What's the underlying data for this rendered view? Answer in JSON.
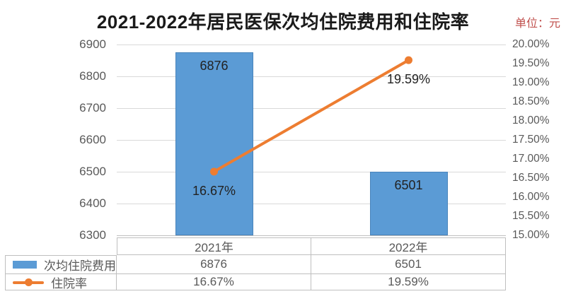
{
  "title": "2021-2022年居民医保次均住院费用和住院率",
  "unit_label": "单位：元",
  "colors": {
    "bar": "#5B9BD5",
    "line": "#ED7D31",
    "grid": "#D9D9D9",
    "axis_text": "#595959",
    "data_label": "#222222",
    "table_border": "#BFBFBF",
    "unit_text": "#C0504D"
  },
  "chart_data": {
    "type": "bar",
    "title": "2021-2022年居民医保次均住院费用和住院率",
    "categories": [
      "2021年",
      "2022年"
    ],
    "series": [
      {
        "name": "次均住院费用",
        "chart_type": "bar",
        "axis": "left",
        "values": [
          6876,
          6501
        ],
        "data_labels": [
          "6876",
          "6501"
        ],
        "color": "#5B9BD5"
      },
      {
        "name": "住院率",
        "chart_type": "line",
        "axis": "right",
        "values": [
          16.67,
          19.59
        ],
        "data_labels": [
          "16.67%",
          "19.59%"
        ],
        "color": "#ED7D31"
      }
    ],
    "left_axis": {
      "min": 6300,
      "max": 6900,
      "step": 100,
      "ticks": [
        "6900",
        "6800",
        "6700",
        "6600",
        "6500",
        "6400",
        "6300"
      ]
    },
    "right_axis": {
      "min": 15,
      "max": 20,
      "step": 0.5,
      "ticks": [
        "20.00%",
        "19.50%",
        "19.00%",
        "18.50%",
        "18.00%",
        "17.50%",
        "17.00%",
        "16.50%",
        "16.00%",
        "15.50%",
        "15.00%"
      ]
    },
    "grid": true,
    "legend_position": "data-table-left"
  },
  "data_table": {
    "col_headers": [
      "2021年",
      "2022年"
    ],
    "rows": [
      {
        "label": "次均住院费用",
        "values": [
          "6876",
          "6501"
        ]
      },
      {
        "label": "住院率",
        "values": [
          "16.67%",
          "19.59%"
        ]
      }
    ]
  }
}
